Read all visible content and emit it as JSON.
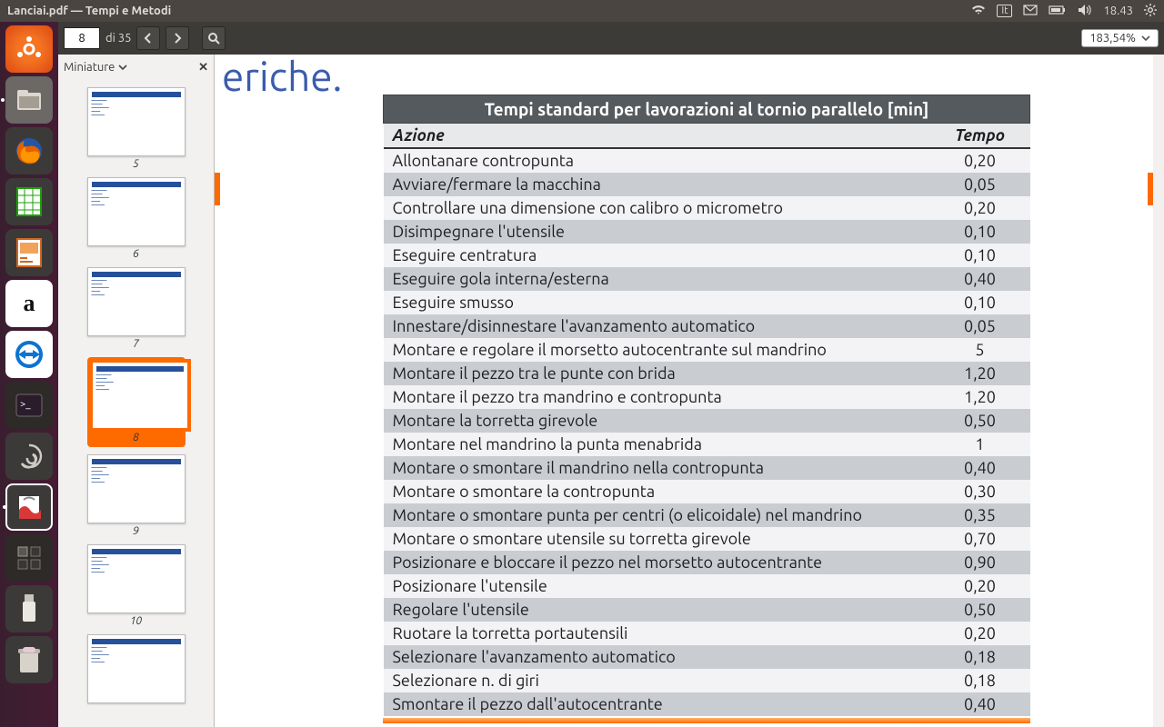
{
  "menubar": {
    "title": "Lanciai.pdf — Tempi e Metodi",
    "lang": "It",
    "time": "18.43"
  },
  "toolbar": {
    "page_current": "8",
    "page_sep": "di",
    "page_total": "35",
    "zoom": "183,54%"
  },
  "thumbs": {
    "header": "Miniature",
    "pages": [
      {
        "n": "5",
        "sel": false
      },
      {
        "n": "6",
        "sel": false
      },
      {
        "n": "7",
        "sel": false
      },
      {
        "n": "8",
        "sel": true
      },
      {
        "n": "9",
        "sel": false
      },
      {
        "n": "10",
        "sel": false
      },
      {
        "n": "",
        "sel": false
      }
    ]
  },
  "doc": {
    "partial_title": "eriche.",
    "table_title": "Tempi standard per lavorazioni al tornio parallelo [min]",
    "col_action": "Azione",
    "col_time": "Tempo",
    "rows": [
      [
        "Allontanare contropunta",
        "0,20"
      ],
      [
        "Avviare/fermare la macchina",
        "0,05"
      ],
      [
        "Controllare una dimensione con calibro o micrometro",
        "0,20"
      ],
      [
        "Disimpegnare l'utensile",
        "0,10"
      ],
      [
        "Eseguire centratura",
        "0,10"
      ],
      [
        "Eseguire gola interna/esterna",
        "0,40"
      ],
      [
        "Eseguire smusso",
        "0,10"
      ],
      [
        "Innestare/disinnestare l'avanzamento automatico",
        "0,05"
      ],
      [
        "Montare e regolare il morsetto autocentrante sul mandrino",
        "5"
      ],
      [
        "Montare il pezzo tra le punte con brida",
        "1,20"
      ],
      [
        "Montare il pezzo tra mandrino e contropunta",
        "1,20"
      ],
      [
        "Montare la torretta girevole",
        "0,50"
      ],
      [
        "Montare nel mandrino la punta menabrida",
        "1"
      ],
      [
        "Montare o smontare il mandrino nella contropunta",
        "0,40"
      ],
      [
        "Montare o smontare la contropunta",
        "0,30"
      ],
      [
        "Montare o smontare punta per centri (o elicoidale) nel mandrino",
        "0,35"
      ],
      [
        "Montare o smontare utensile su torretta girevole",
        "0,70"
      ],
      [
        "Posizionare e bloccare il pezzo nel morsetto autocentrante",
        "0,90"
      ],
      [
        "Posizionare l'utensile",
        "0,20"
      ],
      [
        "Regolare l'utensile",
        "0,50"
      ],
      [
        "Ruotare la torretta portautensili",
        "0,20"
      ],
      [
        "Selezionare l'avanzamento automatico",
        "0,18"
      ],
      [
        "Selezionare n. di giri",
        "0,18"
      ],
      [
        "Smontare il pezzo dall'autocentrante",
        "0,40"
      ]
    ]
  }
}
